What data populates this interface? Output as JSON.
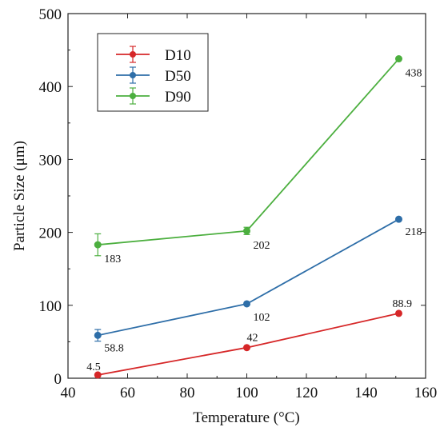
{
  "chart_data": {
    "type": "line",
    "xlabel": "Temperature (°C)",
    "ylabel": "Particle Size (μm)",
    "xlim": [
      40,
      160
    ],
    "ylim": [
      0,
      500
    ],
    "xticks": [
      "40",
      "60",
      "80",
      "100",
      "120",
      "140",
      "160"
    ],
    "yticks": [
      "0",
      "100",
      "200",
      "300",
      "400",
      "500"
    ],
    "grid": false,
    "legend_position": "top-left",
    "x": [
      50,
      100,
      151
    ],
    "series": [
      {
        "name": "D10",
        "color": "#d62728",
        "values": [
          4.5,
          42,
          88.9
        ],
        "errors": [
          0,
          0,
          0
        ],
        "labels": [
          "4.5",
          "42",
          "88.9"
        ]
      },
      {
        "name": "D50",
        "color": "#2e6ea8",
        "values": [
          58.8,
          102,
          218
        ],
        "errors": [
          8,
          0,
          0
        ],
        "labels": [
          "58.8",
          "102",
          "218"
        ]
      },
      {
        "name": "D90",
        "color": "#4caf3f",
        "values": [
          183,
          202,
          438
        ],
        "errors": [
          15,
          5,
          0
        ],
        "labels": [
          "183",
          "202",
          "438"
        ]
      }
    ]
  }
}
